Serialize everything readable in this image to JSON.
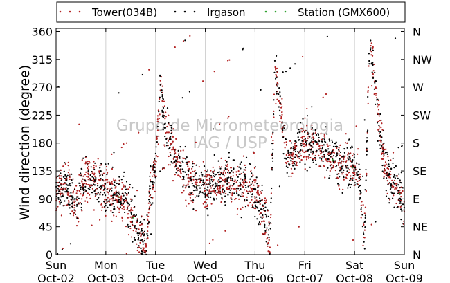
{
  "chart_data": {
    "type": "scatter",
    "title": "",
    "xlabel": "",
    "ylabel": "Wind direction (degree)",
    "ylim": [
      0,
      365
    ],
    "xlim_days": [
      0,
      7
    ],
    "grid": "vertical",
    "legend_placement": "top",
    "watermark": [
      "Grupo de Micrometeorologia",
      "IAG / USP"
    ],
    "x_ticks": [
      {
        "day": "Sun",
        "date": "Oct-02"
      },
      {
        "day": "Mon",
        "date": "Oct-03"
      },
      {
        "day": "Tue",
        "date": "Oct-04"
      },
      {
        "day": "Wed",
        "date": "Oct-05"
      },
      {
        "day": "Thu",
        "date": "Oct-06"
      },
      {
        "day": "Fri",
        "date": "Oct-07"
      },
      {
        "day": "Sat",
        "date": "Oct-08"
      },
      {
        "day": "Sun",
        "date": "Oct-09"
      }
    ],
    "y_ticks_left": [
      0,
      45,
      90,
      135,
      180,
      225,
      270,
      315,
      360
    ],
    "y_ticks_right": [
      "N",
      "NE",
      "E",
      "SE",
      "S",
      "SW",
      "W",
      "NW",
      "N"
    ],
    "series": [
      {
        "name": "Tower(034B)",
        "color": "#b22222"
      },
      {
        "name": "Irgason",
        "color": "#000000"
      },
      {
        "name": "Station (GMX600)",
        "color": "#2ca02c"
      }
    ],
    "trend": {
      "x_days": [
        0.0,
        0.1,
        0.2,
        0.3,
        0.4,
        0.5,
        0.6,
        0.7,
        0.8,
        0.9,
        1.0,
        1.2,
        1.4,
        1.6,
        1.8,
        1.9,
        2.0,
        2.1,
        2.2,
        2.4,
        2.6,
        2.8,
        3.0,
        3.2,
        3.4,
        3.6,
        3.8,
        4.0,
        4.1,
        4.2,
        4.3,
        4.4,
        4.5,
        4.6,
        4.7,
        4.8,
        4.9,
        5.0,
        5.2,
        5.4,
        5.6,
        5.8,
        6.0,
        6.1,
        6.2,
        6.3,
        6.4,
        6.5,
        6.6,
        6.7,
        6.8,
        6.9,
        7.0
      ],
      "y_deg": [
        100,
        108,
        112,
        95,
        72,
        110,
        120,
        125,
        122,
        112,
        102,
        95,
        90,
        50,
        10,
        110,
        140,
        280,
        200,
        160,
        130,
        112,
        110,
        112,
        118,
        115,
        112,
        100,
        85,
        60,
        20,
        300,
        250,
        170,
        150,
        165,
        175,
        180,
        175,
        165,
        150,
        145,
        140,
        120,
        30,
        340,
        280,
        210,
        150,
        125,
        112,
        100,
        75
      ]
    }
  }
}
